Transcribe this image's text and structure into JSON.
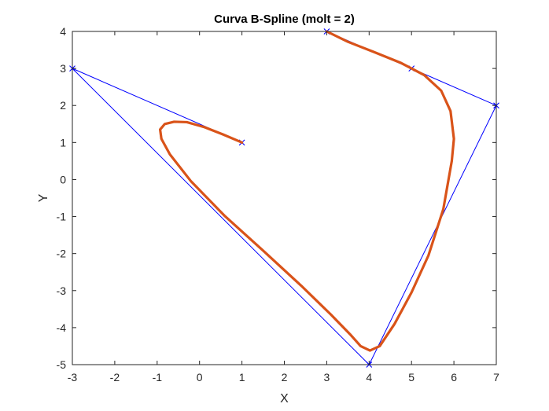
{
  "chart_data": {
    "type": "line",
    "title": "Curva B-Spline (molt = 2)",
    "xlabel": "X",
    "ylabel": "Y",
    "xlim": [
      -3,
      7
    ],
    "ylim": [
      -5,
      4
    ],
    "xticks": [
      -3,
      -2,
      -1,
      0,
      1,
      2,
      3,
      4,
      5,
      6,
      7
    ],
    "yticks": [
      -5,
      -4,
      -3,
      -2,
      -1,
      0,
      1,
      2,
      3,
      4
    ],
    "grid": false,
    "series": [
      {
        "role": "control-polygon",
        "color": "#0000ff",
        "marker": "x",
        "points": [
          [
            1,
            1
          ],
          [
            -3,
            3
          ],
          [
            4,
            -5
          ],
          [
            7,
            2
          ],
          [
            5,
            3
          ],
          [
            3,
            4
          ]
        ]
      },
      {
        "role": "spline-curve",
        "color": "#d95319",
        "points": [
          [
            1,
            1
          ],
          [
            0.55,
            1.22
          ],
          [
            0.1,
            1.42
          ],
          [
            -0.3,
            1.55
          ],
          [
            -0.6,
            1.56
          ],
          [
            -0.82,
            1.5
          ],
          [
            -0.93,
            1.35
          ],
          [
            -0.9,
            1.1
          ],
          [
            -0.7,
            0.68
          ],
          [
            -0.2,
            -0.05
          ],
          [
            0.6,
            -0.99
          ],
          [
            1.5,
            -1.92
          ],
          [
            2.4,
            -2.87
          ],
          [
            3.1,
            -3.65
          ],
          [
            3.55,
            -4.18
          ],
          [
            3.8,
            -4.5
          ],
          [
            4.02,
            -4.62
          ],
          [
            4.25,
            -4.5
          ],
          [
            4.6,
            -3.9
          ],
          [
            5.0,
            -3.05
          ],
          [
            5.4,
            -2.05
          ],
          [
            5.75,
            -0.8
          ],
          [
            5.95,
            0.5
          ],
          [
            6.0,
            1.1
          ],
          [
            5.92,
            1.85
          ],
          [
            5.7,
            2.4
          ],
          [
            5.3,
            2.82
          ],
          [
            4.75,
            3.15
          ],
          [
            4.1,
            3.45
          ],
          [
            3.5,
            3.72
          ],
          [
            3,
            4
          ]
        ]
      }
    ]
  }
}
